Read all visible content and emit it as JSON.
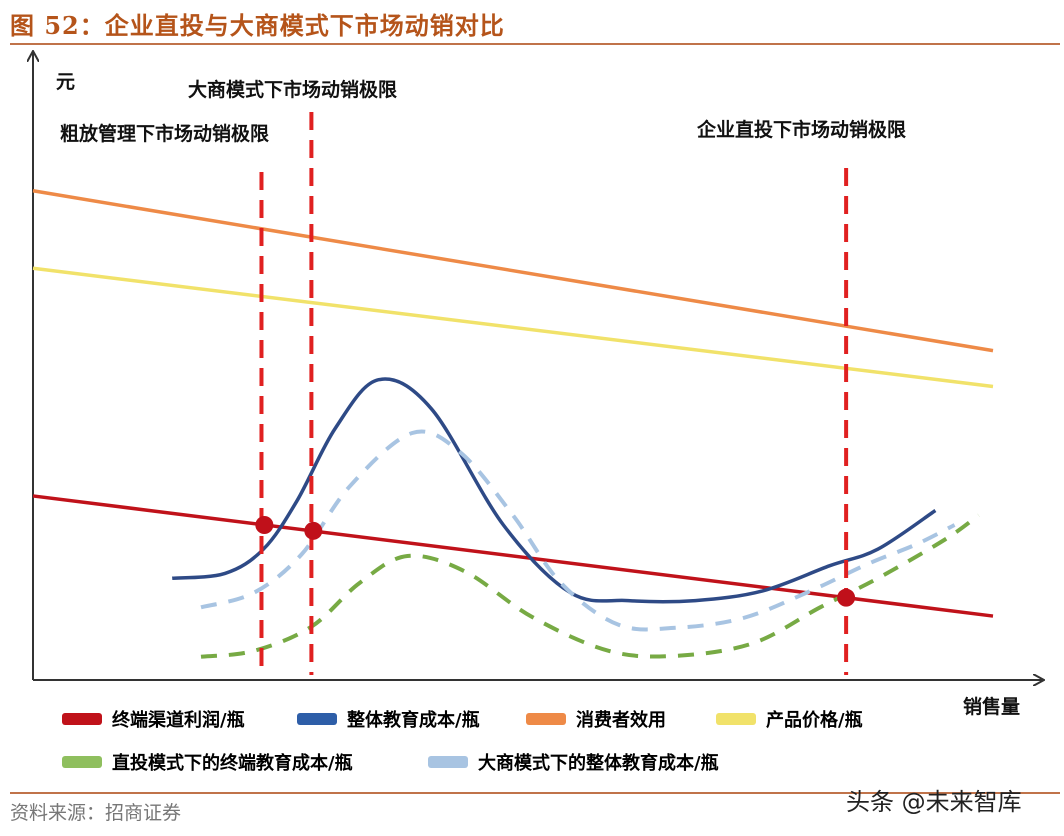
{
  "figure": {
    "title": "图 52：企业直投与大商模式下市场动销对比",
    "source": "资料来源：招商证券",
    "watermark": "头条 @未来智库"
  },
  "chart_data": {
    "type": "line",
    "title": "图 52：企业直投与大商模式下市场动销对比",
    "xlabel": "销售量",
    "ylabel": "元",
    "xlim": [
      0,
      1000
    ],
    "ylim": [
      0,
      640
    ],
    "grid": false,
    "legend_position": "bottom",
    "series": [
      {
        "name": "终端渠道利润/瓶",
        "color": "#c0121a",
        "style": "solid",
        "x": [
          0,
          1000
        ],
        "y": [
          190,
          66
        ]
      },
      {
        "name": "整体教育成本/瓶",
        "color": "#2e4a86",
        "style": "solid",
        "x": [
          145,
          200,
          240,
          275,
          315,
          360,
          415,
          490,
          560,
          620,
          690,
          760,
          830,
          880,
          940
        ],
        "y": [
          105,
          110,
          135,
          185,
          260,
          310,
          280,
          160,
          90,
          82,
          82,
          92,
          118,
          135,
          175
        ]
      },
      {
        "name": "消费者效用",
        "color": "#ee8a47",
        "style": "solid",
        "x": [
          0,
          1000
        ],
        "y": [
          505,
          340
        ]
      },
      {
        "name": "产品价格/瓶",
        "color": "#f1e26a",
        "style": "solid",
        "x": [
          0,
          1000
        ],
        "y": [
          425,
          303
        ]
      },
      {
        "name": "直投模式下的终端教育成本/瓶",
        "color": "#77aa44",
        "style": "dashed",
        "x": [
          175,
          230,
          290,
          340,
          390,
          450,
          520,
          600,
          670,
          750,
          820,
          880,
          950,
          985
        ],
        "y": [
          24,
          30,
          55,
          100,
          128,
          112,
          65,
          30,
          25,
          38,
          75,
          105,
          145,
          170
        ]
      },
      {
        "name": "大商模式下的整体教育成本/瓶",
        "color": "#a8c4e2",
        "style": "dashed",
        "x": [
          175,
          230,
          280,
          330,
          395,
          445,
          500,
          550,
          610,
          670,
          740,
          810,
          870,
          920,
          960
        ],
        "y": [
          75,
          90,
          130,
          200,
          255,
          235,
          170,
          100,
          57,
          54,
          64,
          92,
          120,
          140,
          160
        ]
      }
    ],
    "vlines": [
      {
        "label": "粗放管理下市场动销极限",
        "x": 238
      },
      {
        "label": "大商模式下市场动销极限",
        "x": 290
      },
      {
        "label": "企业直投下市场动销极限",
        "x": 847
      }
    ],
    "intersections": [
      {
        "x": 241,
        "y": 160
      },
      {
        "x": 292,
        "y": 154
      },
      {
        "x": 847,
        "y": 85
      }
    ]
  }
}
